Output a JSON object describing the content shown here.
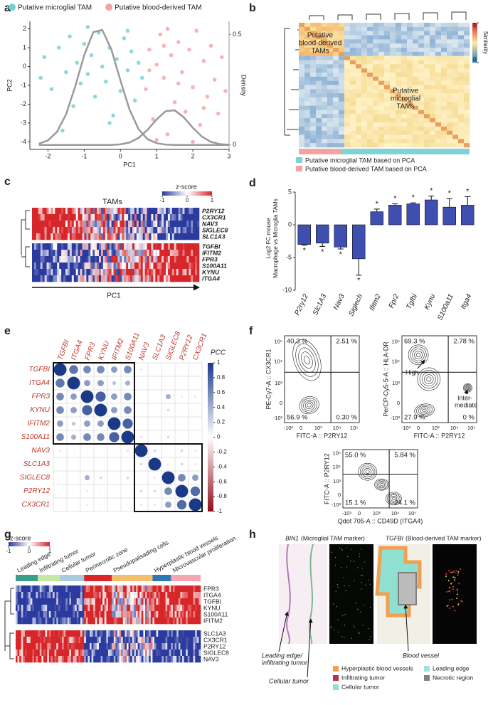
{
  "panel_labels": [
    "a",
    "b",
    "c",
    "d",
    "e",
    "f",
    "g",
    "h"
  ],
  "chart_data": [
    {
      "type": "scatter",
      "xlabel": "PC1",
      "ylabel": "PC2",
      "y2label": "Density",
      "xlim": [
        -2.5,
        3
      ],
      "ylim": [
        -4.4,
        2.4
      ],
      "xticks": [
        -2,
        -1,
        0,
        1,
        2,
        3
      ],
      "yticks": [
        -4,
        -3,
        -2,
        -1,
        0,
        1,
        2
      ],
      "y2lim": [
        -0.02,
        0.56
      ],
      "y2ticks": [
        0,
        0.5
      ],
      "series": [
        {
          "name": "Putative microglial TAM",
          "color": "#6fd0d6",
          "x": [
            -2.1,
            -1.9,
            -1.7,
            -1.5,
            -1.4,
            -1.3,
            -1.2,
            -1.1,
            -1.0,
            -0.9,
            -0.8,
            -0.7,
            -0.6,
            -0.5,
            -0.4,
            -0.3,
            -0.2,
            -0.1,
            0.0,
            0.1,
            0.2,
            0.3,
            0.4,
            0.5,
            0.6,
            -1.6,
            -0.9,
            -0.3,
            0.2,
            -2.2
          ],
          "values": [
            0.5,
            -1.2,
            1.0,
            -0.3,
            1.6,
            -2.1,
            0.2,
            -0.9,
            1.2,
            -0.4,
            0.6,
            -1.6,
            1.8,
            0.0,
            -0.8,
            1.0,
            -2.6,
            0.4,
            -1.3,
            1.5,
            -0.2,
            0.8,
            -1.8,
            0.2,
            -0.6,
            -3.4,
            2.1,
            -3.0,
            1.9,
            -0.6
          ]
        },
        {
          "name": "Putative blood-derived TAM",
          "color": "#f3a3a0",
          "x": [
            0.7,
            0.8,
            0.9,
            1.0,
            1.1,
            1.2,
            1.3,
            1.4,
            1.5,
            1.6,
            1.7,
            1.8,
            1.9,
            2.0,
            2.1,
            2.2,
            2.3,
            2.4,
            2.5,
            2.6,
            2.7,
            2.8,
            1.0,
            1.3,
            2.0,
            0.8,
            1.6,
            2.9,
            1.2,
            2.3
          ],
          "values": [
            -1.2,
            0.9,
            -2.8,
            0.1,
            1.7,
            -0.6,
            -3.6,
            0.6,
            -1.9,
            1.3,
            -0.3,
            -2.4,
            0.9,
            -1.1,
            1.9,
            -3.1,
            0.3,
            -1.6,
            1.1,
            -0.7,
            -2.5,
            0.5,
            -3.9,
            2.0,
            -4.0,
            -0.2,
            -0.9,
            -1.3,
            1.1,
            -2.2
          ]
        }
      ],
      "density": [
        {
          "color": "#9a9a9a",
          "axis": "y2",
          "x": [
            -2.25,
            -2.0,
            -1.75,
            -1.5,
            -1.25,
            -1.0,
            -0.75,
            -0.5,
            -0.25,
            0.0,
            0.25,
            0.5,
            0.75,
            1.0,
            1.25,
            1.5,
            1.75,
            2.0,
            2.25,
            2.5,
            2.75,
            3.0
          ],
          "values": [
            0.006,
            0.021,
            0.06,
            0.139,
            0.264,
            0.407,
            0.511,
            0.521,
            0.433,
            0.292,
            0.161,
            0.072,
            0.026,
            0.008,
            0.002,
            0,
            0,
            0,
            0,
            0,
            0,
            0
          ]
        },
        {
          "color": "#9a9a9a",
          "axis": "y2",
          "x": [
            -2.25,
            -2.0,
            -1.75,
            -1.5,
            -1.25,
            -1.0,
            -0.75,
            -0.5,
            -0.25,
            0.0,
            0.25,
            0.5,
            0.75,
            1.0,
            1.25,
            1.5,
            1.75,
            2.0,
            2.25,
            2.5,
            2.75,
            3.0
          ],
          "values": [
            0,
            0,
            0,
            0,
            0,
            0,
            0,
            0,
            0,
            0.003,
            0.011,
            0.032,
            0.069,
            0.116,
            0.153,
            0.157,
            0.125,
            0.078,
            0.038,
            0.014,
            0.004,
            0.001
          ]
        }
      ]
    },
    {
      "type": "bar",
      "ylabel": [
        "Log2 FC mouse",
        "Macrophage vs Microglia TAMs"
      ],
      "categories": [
        "P2ry12",
        "Slc1A3",
        "Nav3",
        "Siglech",
        "Ifitm2",
        "Fpr2",
        "Tgfbi",
        "Kynu",
        "S100a11",
        "Itga4"
      ],
      "values": [
        -3.0,
        -2.8,
        -3.4,
        -5.2,
        2.0,
        3.0,
        3.2,
        3.8,
        2.7,
        3.0
      ],
      "errors": [
        0.1,
        0.5,
        0.3,
        2.5,
        0.4,
        0.2,
        0.15,
        0.6,
        1.3,
        1.3
      ],
      "annotations": [
        "*",
        "*",
        "*",
        "*",
        "*",
        "*",
        "*",
        "*",
        "*",
        "*"
      ],
      "color": "#3f4fb0",
      "ylim": [
        -10,
        5
      ],
      "yticks": [
        -10,
        -5,
        0,
        5
      ]
    },
    {
      "type": "correlation",
      "title": "PCC",
      "labels": [
        "TGFBI",
        "ITGA4",
        "FPR3",
        "KYNU",
        "IFITM2",
        "S100A11",
        "NAV3",
        "SLC1A3",
        "SIGLEC8",
        "P2RY12",
        "CX3CR1"
      ],
      "values": [
        [
          1,
          0.7,
          0.6,
          0.6,
          0.5,
          0.6,
          -0.15,
          -0.05,
          0,
          0.05,
          0.05
        ],
        [
          0.7,
          1,
          0.5,
          0.5,
          0.3,
          0.4,
          -0.1,
          0,
          0,
          0.1,
          0.05
        ],
        [
          0.6,
          0.5,
          1,
          0.8,
          0.5,
          0.6,
          -0.05,
          0.05,
          0.4,
          0.15,
          0.15
        ],
        [
          0.6,
          0.5,
          0.8,
          1,
          0.5,
          0.6,
          -0.05,
          0,
          0.2,
          0.1,
          0.1
        ],
        [
          0.5,
          0.3,
          0.5,
          0.5,
          1,
          0.8,
          -0.1,
          0,
          0.1,
          0.05,
          0.1
        ],
        [
          0.6,
          0.4,
          0.6,
          0.6,
          0.8,
          1,
          -0.15,
          -0.05,
          0.2,
          0.1,
          0.1
        ],
        [
          -0.15,
          -0.1,
          -0.05,
          -0.05,
          -0.1,
          -0.15,
          1,
          0.2,
          0.1,
          0.2,
          0.15
        ],
        [
          -0.05,
          0,
          0.05,
          0,
          0,
          -0.05,
          0.2,
          1,
          0.15,
          0.2,
          0.15
        ],
        [
          0,
          0,
          0.4,
          0.2,
          0.1,
          0.2,
          0.1,
          0.15,
          1,
          0.6,
          0.5
        ],
        [
          0.05,
          0.1,
          0.15,
          0.1,
          0.05,
          0.1,
          0.2,
          0.2,
          0.6,
          1,
          0.75
        ],
        [
          0.05,
          0.05,
          0.15,
          0.1,
          0.1,
          0.1,
          0.15,
          0.15,
          0.5,
          0.75,
          1
        ]
      ],
      "colorbar_lim": [
        -1,
        1
      ],
      "colorbar_ticks": [
        1,
        0.8,
        0.6,
        0.4,
        0.2,
        0,
        -0.2,
        -0.4,
        -0.6,
        -0.8,
        -1
      ],
      "colors": {
        "positive": "#1a3a88",
        "negative": "#8e0d1a"
      }
    }
  ],
  "heatmap_b": {
    "block_labels": [
      [
        "Putative",
        "blood-derived",
        "TAMs"
      ],
      [
        "Putative",
        "microglial",
        "TAMs"
      ]
    ],
    "colorbar_title": "Similarity",
    "colorbar_lim": [
      0,
      1
    ],
    "colorbar_ticks": [
      0,
      1
    ],
    "legend": [
      {
        "name": "Putative microglial TAM based on PCA",
        "color": "#7fd3d8"
      },
      {
        "name": "Putative blood-derived TAM based on PCA",
        "color": "#f2a3a2"
      }
    ]
  },
  "heatmap_c": {
    "title": "TAMs",
    "legend_title": "z-score",
    "legend_lim": [
      -1,
      1
    ],
    "legend_ticks": [
      -1,
      0,
      1
    ],
    "xlabel": "PC1",
    "genes_top": [
      "P2RY12",
      "CX3CR1",
      "NAV3",
      "SIGLEC8",
      "SLC1A3"
    ],
    "genes_bottom": [
      "TGFBI",
      "IFITM2",
      "FPR3",
      "S100A11",
      "KYNU",
      "ITGA4"
    ]
  },
  "flow_f": {
    "tick_labels": [
      "-10³",
      "0",
      "10³",
      "10⁴",
      "10⁵"
    ],
    "plots": [
      {
        "ylabel": "PE-Cy7-A :: CX3CR1",
        "xlabel": "FITC-A :: P2RY12",
        "quadrants": [
          "40.3 %",
          "2.51 %",
          "56.9 %",
          "0.30 %"
        ]
      },
      {
        "ylabel": "PerCP-Cy5-5-A :: HLA-DR",
        "xlabel": "FITC-A :: P2RY12",
        "quadrants": [
          "69.3 %",
          "2.78 %",
          "27.9 %",
          "0 %"
        ],
        "annotations": [
          "High",
          "Inter-",
          "mediate"
        ]
      },
      {
        "ylabel": "FITC-A :: P2RY12",
        "xlabel": "Qdot 705-A :: CD49D (ITGA4)",
        "quadrants": [
          "55.0 %",
          "5.84 %",
          "15.1 %",
          "24.1 %"
        ]
      }
    ]
  },
  "heatmap_g": {
    "legend_title": "z-score",
    "legend_lim": [
      -1,
      1
    ],
    "legend_ticks": [
      -1,
      0,
      1
    ],
    "regions": [
      {
        "name": "Leading edge",
        "color": "#3b9e8a"
      },
      {
        "name": "Infiltrating tumor",
        "color": "#c8e7a7"
      },
      {
        "name": "Cellular tumor",
        "color": "#a9cbe2"
      },
      {
        "name": "Perinecrotic zone",
        "color": "#d8262a"
      },
      {
        "name": "Pseudopalisading cells",
        "color": "#f4bd6c"
      },
      {
        "name": "Hyperplastic blood vessels",
        "color": "#2e78b6"
      },
      {
        "name": "Microvascular proliferation",
        "color": "#f4a7b2"
      }
    ],
    "genes_top": [
      "FPR3",
      "ITGA4",
      "TGFBI",
      "KYNU",
      "S100A11",
      "IFITM2"
    ],
    "genes_bottom": [
      "SLC1A3",
      "CX3CR1",
      "P2RY12",
      "SIGLEC8",
      "NAV3"
    ]
  },
  "images_h": {
    "titles": [
      {
        "gene": "BIN1",
        "note": "(Microglial TAM marker)"
      },
      {
        "gene": "TGFBI",
        "note": "(Blood-derived TAM marker)"
      }
    ],
    "annotations": [
      "Leading edge/",
      "infiltrating tumor",
      "Cellular tumor",
      "Blood vessel"
    ],
    "legend": [
      {
        "name": "Hyperplastic blood vessels",
        "color": "#f0a050"
      },
      {
        "name": "Infiltrating tumor",
        "color": "#c0304a"
      },
      {
        "name": "Cellular tumor",
        "color": "#8fe0d0"
      },
      {
        "name": "Leading edge",
        "color": "#a8dde8"
      },
      {
        "name": "Necrotic region",
        "color": "#808080"
      }
    ]
  }
}
